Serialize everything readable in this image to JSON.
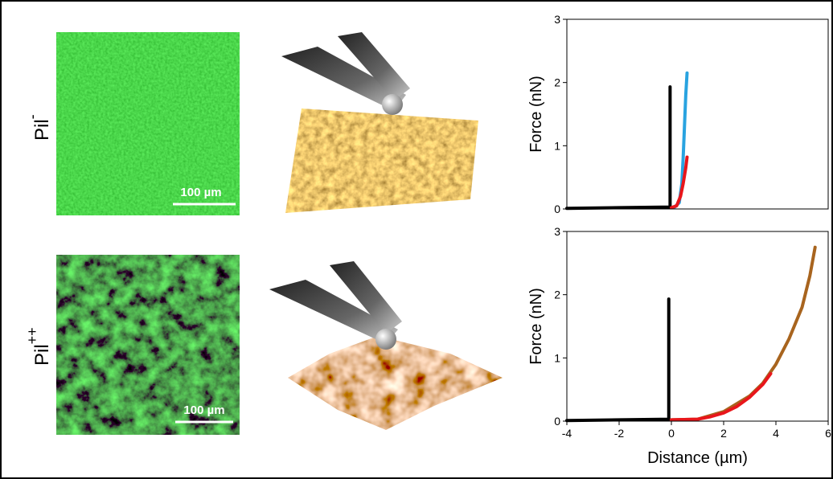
{
  "panels": [
    {
      "label": "Pil",
      "superscript": "-",
      "scale_bar": "100 µm"
    },
    {
      "label": "Pil",
      "superscript": "++",
      "scale_bar": "100 µm"
    }
  ],
  "chart_data": [
    {
      "type": "line",
      "ylabel": "Force (nN)",
      "xlim": [
        -4,
        6
      ],
      "ylim": [
        0,
        3
      ],
      "yticks": [
        0,
        1,
        2,
        3
      ],
      "series": [
        {
          "color": "#000000",
          "x": [
            -4,
            -2,
            -0.05,
            -0.05
          ],
          "values": [
            0.01,
            0.02,
            0.03,
            1.93
          ]
        },
        {
          "color": "#29a3e0",
          "x": [
            0.1,
            0.3,
            0.4,
            0.45,
            0.5,
            0.55,
            0.6
          ],
          "values": [
            0.02,
            0.1,
            0.4,
            0.8,
            1.3,
            1.8,
            2.15
          ]
        },
        {
          "color": "#e8161b",
          "x": [
            0,
            0.2,
            0.35,
            0.45,
            0.55,
            0.6
          ],
          "values": [
            0.02,
            0.05,
            0.2,
            0.4,
            0.65,
            0.82
          ]
        }
      ]
    },
    {
      "type": "line",
      "ylabel": "Force (nN)",
      "xlabel": "Distance (µm)",
      "xlim": [
        -4,
        6
      ],
      "xticks": [
        -4,
        -2,
        0,
        2,
        4,
        6
      ],
      "ylim": [
        0,
        3
      ],
      "yticks": [
        0,
        1,
        2,
        3
      ],
      "series": [
        {
          "color": "#000000",
          "x": [
            -4,
            -2,
            -0.1,
            -0.1
          ],
          "values": [
            0.01,
            0.02,
            0.03,
            1.93
          ]
        },
        {
          "color": "#a8641e",
          "x": [
            0,
            1,
            2,
            3,
            3.5,
            4,
            4.5,
            5,
            5.3,
            5.5
          ],
          "values": [
            0.02,
            0.03,
            0.15,
            0.4,
            0.6,
            0.9,
            1.3,
            1.8,
            2.3,
            2.75
          ]
        },
        {
          "color": "#e8161b",
          "x": [
            0,
            1,
            1.5,
            2,
            2.5,
            3,
            3.5,
            3.8
          ],
          "values": [
            0.02,
            0.03,
            0.07,
            0.13,
            0.23,
            0.38,
            0.58,
            0.75
          ]
        }
      ]
    }
  ]
}
